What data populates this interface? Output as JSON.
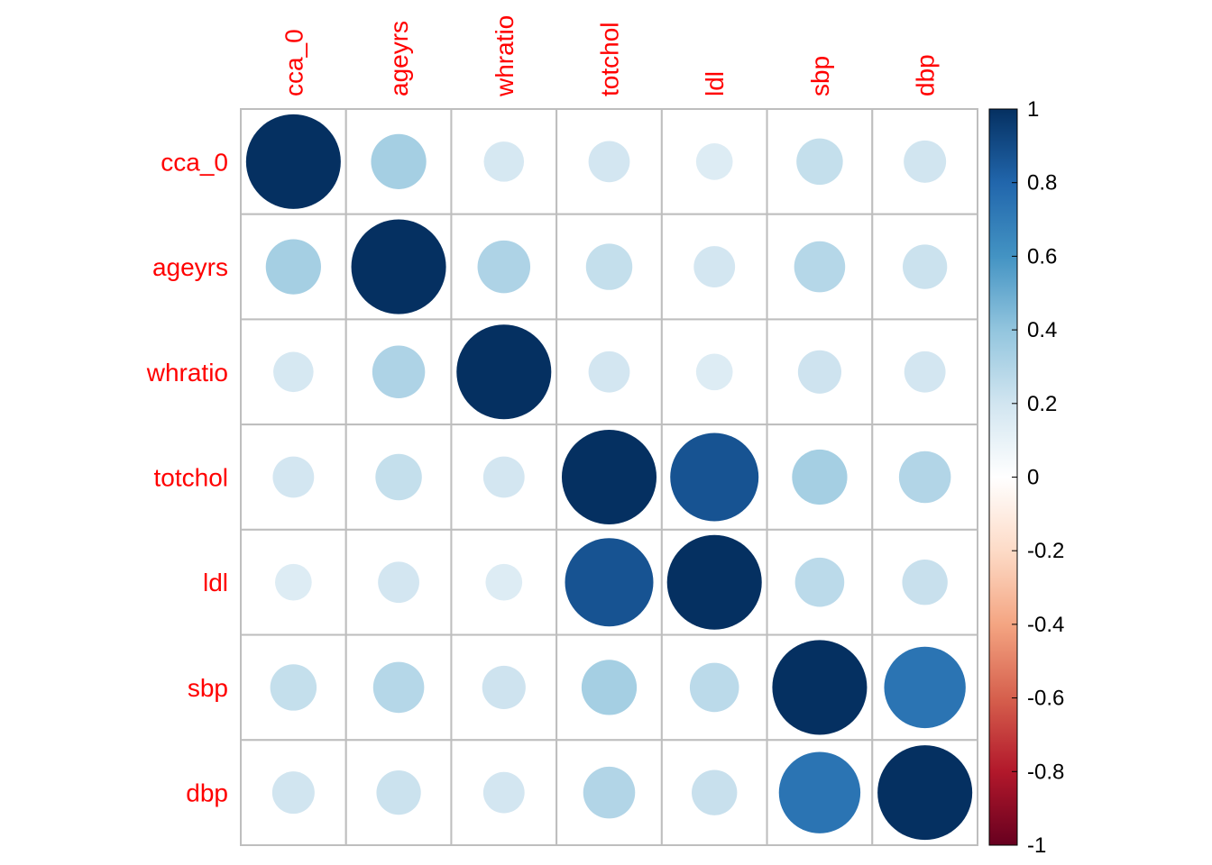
{
  "chart_data": {
    "type": "heatmap",
    "variables": [
      "cca_0",
      "ageyrs",
      "whratio",
      "totchol",
      "ldl",
      "sbp",
      "dbp"
    ],
    "matrix": [
      [
        1.0,
        0.34,
        0.18,
        0.19,
        0.15,
        0.24,
        0.2
      ],
      [
        0.34,
        1.0,
        0.31,
        0.24,
        0.19,
        0.29,
        0.22
      ],
      [
        0.18,
        0.31,
        1.0,
        0.19,
        0.15,
        0.21,
        0.19
      ],
      [
        0.19,
        0.24,
        0.19,
        1.0,
        0.87,
        0.34,
        0.3
      ],
      [
        0.15,
        0.19,
        0.15,
        0.87,
        1.0,
        0.27,
        0.23
      ],
      [
        0.24,
        0.29,
        0.21,
        0.34,
        0.27,
        1.0,
        0.74
      ],
      [
        0.2,
        0.22,
        0.19,
        0.3,
        0.23,
        0.74,
        1.0
      ]
    ],
    "value_range": [
      -1,
      1
    ],
    "glyph": "circle",
    "legend": {
      "position": "right",
      "ticks": [
        "1",
        "0.8",
        "0.6",
        "0.4",
        "0.2",
        "0",
        "-0.2",
        "-0.4",
        "-0.6",
        "-0.8",
        "-1"
      ],
      "colors": {
        "-1": "#67001F",
        "-0.8": "#B2182B",
        "-0.6": "#D6604D",
        "-0.4": "#F4A582",
        "-0.2": "#FDDBC7",
        "0": "#FFFFFF",
        "0.2": "#D1E5F0",
        "0.4": "#92C5DE",
        "0.6": "#4393C3",
        "0.8": "#2166AC",
        "1": "#053061"
      }
    },
    "label_color": "#FF0000",
    "grid": true,
    "grid_color": "#BEBEBE"
  }
}
